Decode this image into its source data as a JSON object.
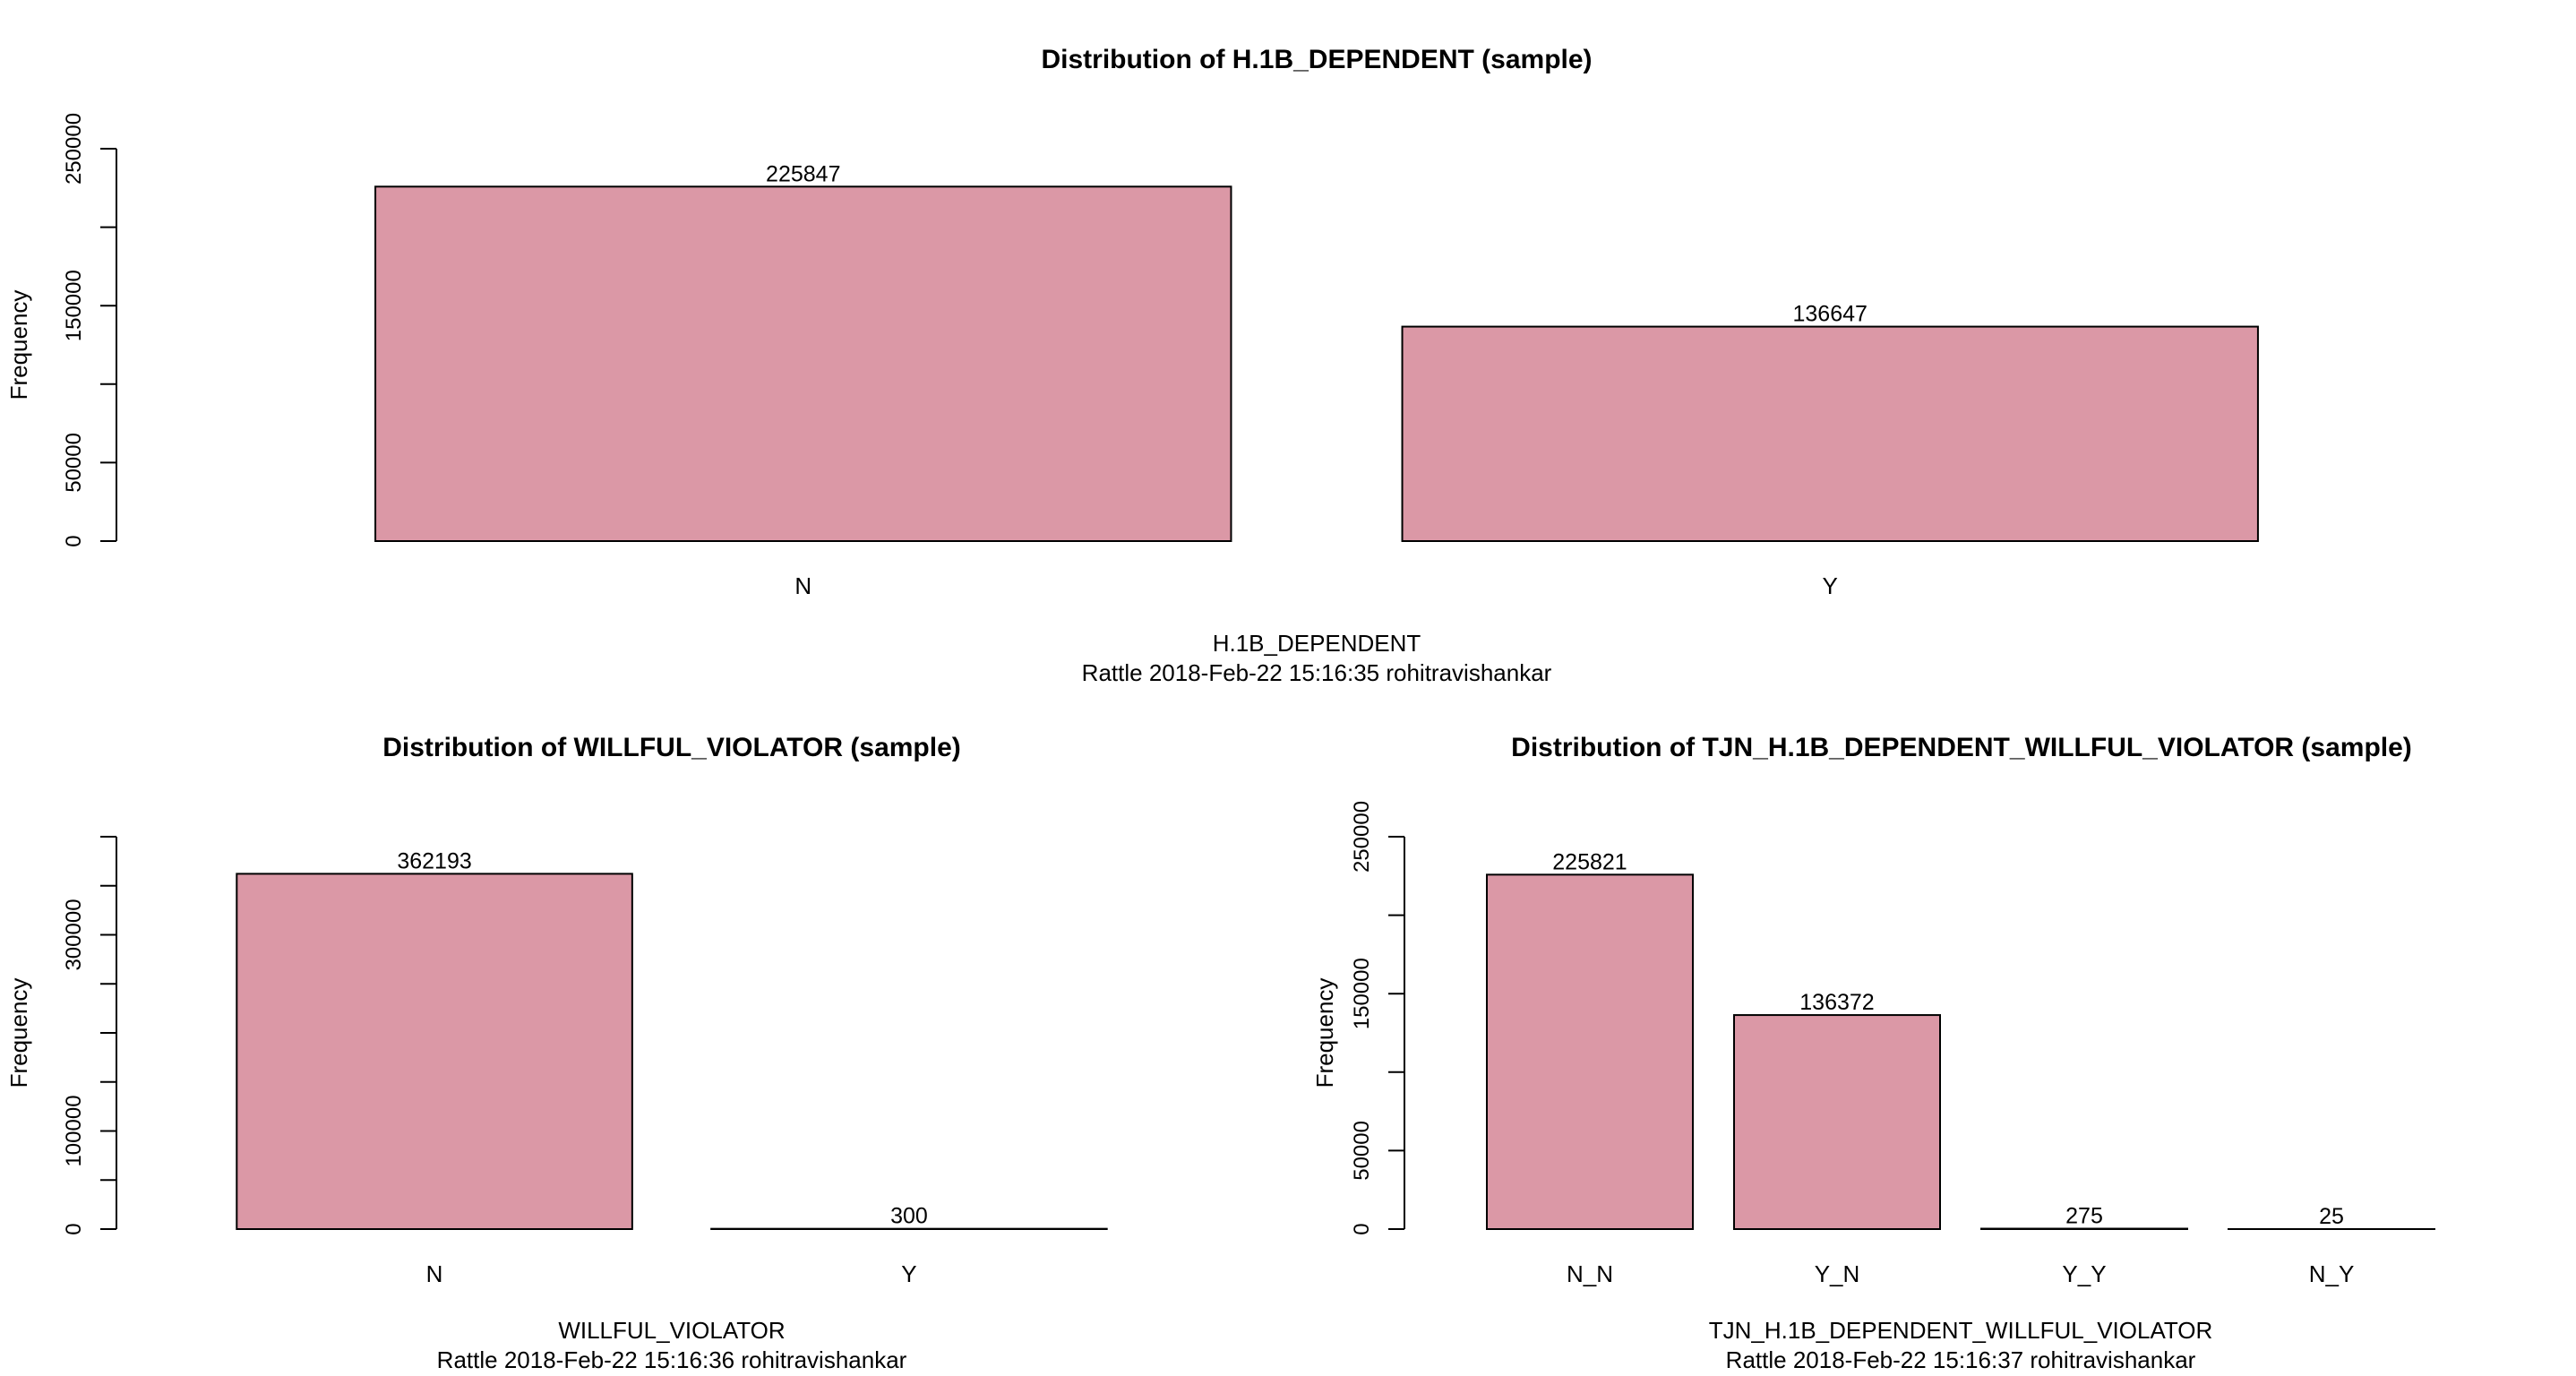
{
  "chart_data": [
    {
      "type": "bar",
      "title": "Distribution of H.1B_DEPENDENT (sample)",
      "xlabel": "H.1B_DEPENDENT",
      "ylabel": "Frequency",
      "caption": "Rattle 2018-Feb-22 15:16:35 rohitravishankar",
      "categories": [
        "N",
        "Y"
      ],
      "values": [
        225847,
        136647
      ],
      "data_labels": [
        "225847",
        "136647"
      ],
      "ylim": [
        0,
        250000
      ],
      "yticks": [
        "0",
        "50000",
        "150000",
        "250000"
      ],
      "bar_color": "#db98a6",
      "grid": false,
      "legend": "none"
    },
    {
      "type": "bar",
      "title": "Distribution of WILLFUL_VIOLATOR (sample)",
      "xlabel": "WILLFUL_VIOLATOR",
      "ylabel": "Frequency",
      "caption": "Rattle 2018-Feb-22 15:16:36 rohitravishankar",
      "categories": [
        "N",
        "Y"
      ],
      "values": [
        362193,
        300
      ],
      "data_labels": [
        "362193",
        "300"
      ],
      "ylim": [
        0,
        400000
      ],
      "yticks": [
        "0",
        "100000",
        "300000"
      ],
      "bar_color": "#db98a6",
      "grid": false,
      "legend": "none"
    },
    {
      "type": "bar",
      "title": "Distribution of TJN_H.1B_DEPENDENT_WILLFUL_VIOLATOR (sample)",
      "xlabel": "TJN_H.1B_DEPENDENT_WILLFUL_VIOLATOR",
      "ylabel": "Frequency",
      "caption": "Rattle 2018-Feb-22 15:16:37 rohitravishankar",
      "categories": [
        "N_N",
        "Y_N",
        "Y_Y",
        "N_Y"
      ],
      "values": [
        225821,
        136372,
        275,
        25
      ],
      "data_labels": [
        "225821",
        "136372",
        "275",
        "25"
      ],
      "ylim": [
        0,
        250000
      ],
      "yticks": [
        "0",
        "50000",
        "150000",
        "250000"
      ],
      "bar_color": "#db98a6",
      "grid": false,
      "legend": "none"
    }
  ]
}
